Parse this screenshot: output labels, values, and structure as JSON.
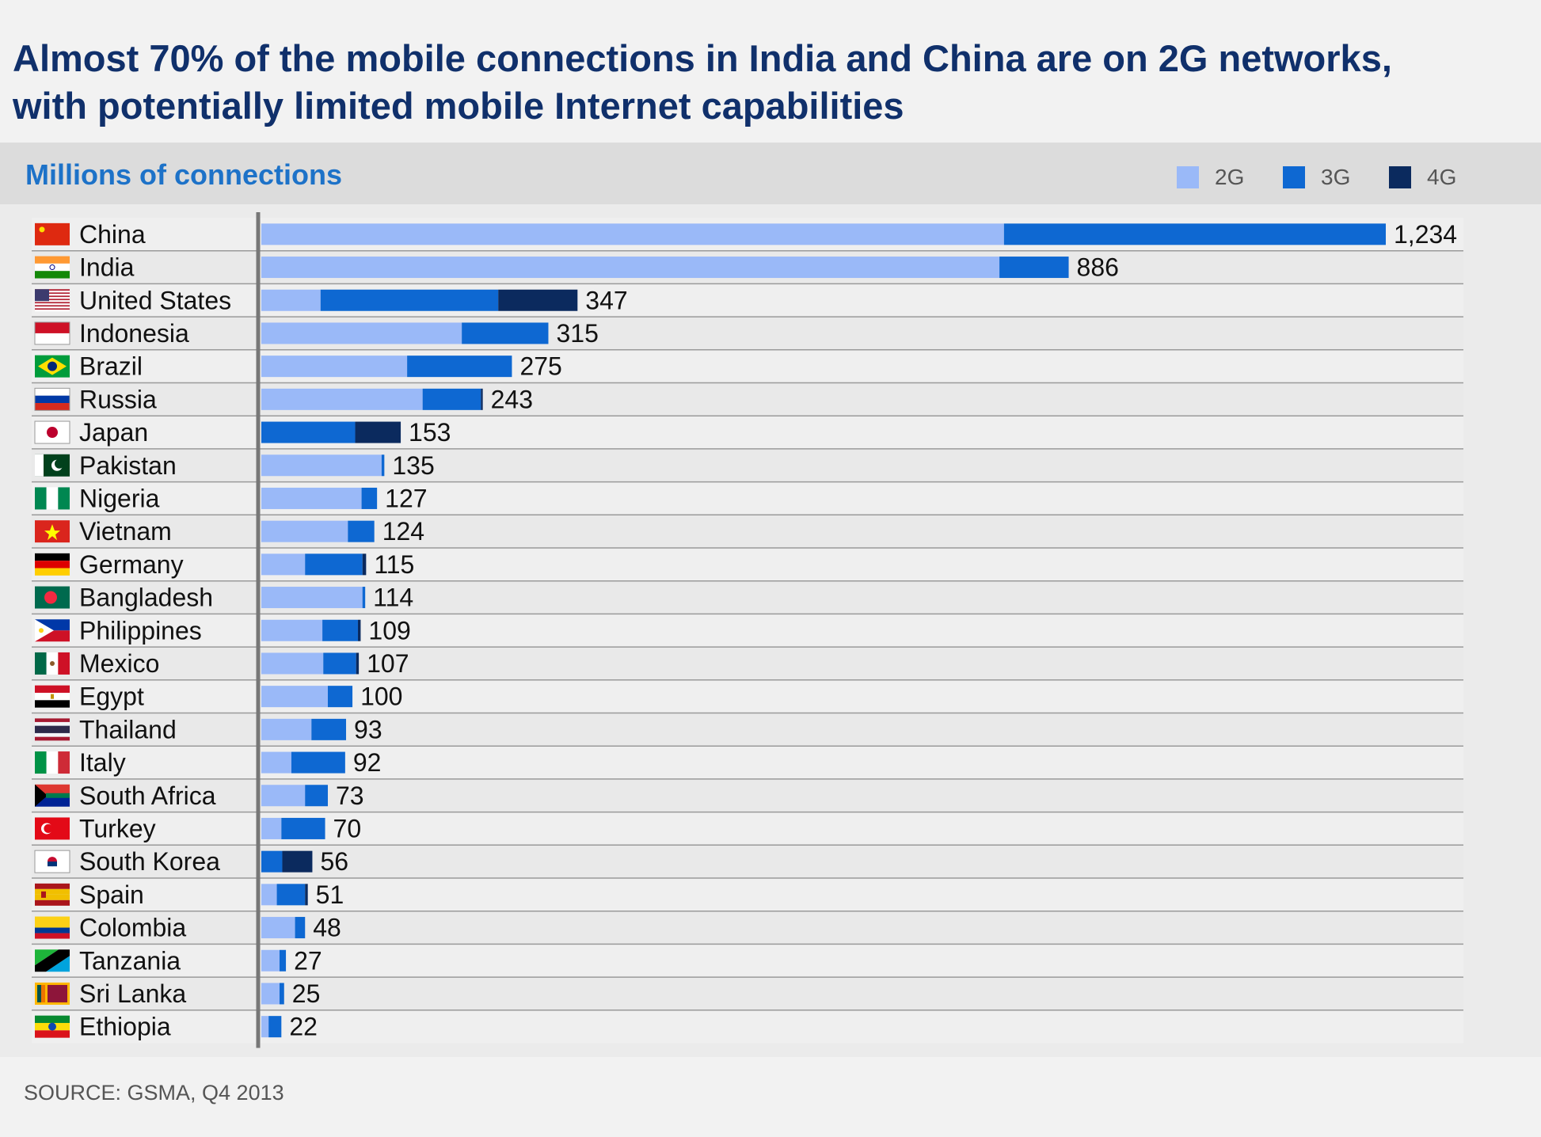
{
  "title": {
    "line1": "Almost 70% of the mobile connections in India and China are on 2G networks,",
    "line2": "with potentially limited mobile Internet capabilities"
  },
  "source": "SOURCE: GSMA, Q4 2013",
  "colors": {
    "2G": "#9ab9f8",
    "3G": "#0e68d2",
    "4G": "#0b2a5e"
  },
  "chart_data": {
    "type": "bar",
    "orientation": "horizontal",
    "stacked": true,
    "title": "Millions of connections",
    "legend": {
      "position": "top-right",
      "entries": [
        "2G",
        "3G",
        "4G"
      ]
    },
    "xlim": [
      0,
      1234
    ],
    "categories": [
      "China",
      "India",
      "United States",
      "Indonesia",
      "Brazil",
      "Russia",
      "Japan",
      "Pakistan",
      "Nigeria",
      "Vietnam",
      "Germany",
      "Bangladesh",
      "Philippines",
      "Mexico",
      "Egypt",
      "Thailand",
      "Italy",
      "South Africa",
      "Turkey",
      "South Korea",
      "Spain",
      "Colombia",
      "Tanzania",
      "Sri Lanka",
      "Ethiopia"
    ],
    "totals": [
      "1,234",
      "886",
      "347",
      "315",
      "275",
      "243",
      "153",
      "135",
      "127",
      "124",
      "115",
      "114",
      "109",
      "107",
      "100",
      "93",
      "92",
      "73",
      "70",
      "56",
      "51",
      "48",
      "27",
      "25",
      "22"
    ],
    "series": [
      {
        "name": "2G",
        "values": [
          815,
          810,
          65,
          220,
          160,
          177,
          0,
          132,
          110,
          95,
          48,
          111,
          67,
          68,
          73,
          55,
          33,
          48,
          22,
          0,
          17,
          37,
          20,
          20,
          8
        ]
      },
      {
        "name": "3G",
        "values": [
          419,
          76,
          195,
          95,
          115,
          64,
          103,
          3,
          17,
          29,
          63,
          3,
          39,
          36,
          27,
          38,
          59,
          25,
          48,
          23,
          31,
          11,
          7,
          5,
          14
        ]
      },
      {
        "name": "4G",
        "values": [
          0,
          0,
          87,
          0,
          0,
          2,
          50,
          0,
          0,
          0,
          4,
          0,
          3,
          3,
          0,
          0,
          0,
          0,
          0,
          33,
          3,
          0,
          0,
          0,
          0
        ]
      }
    ]
  }
}
